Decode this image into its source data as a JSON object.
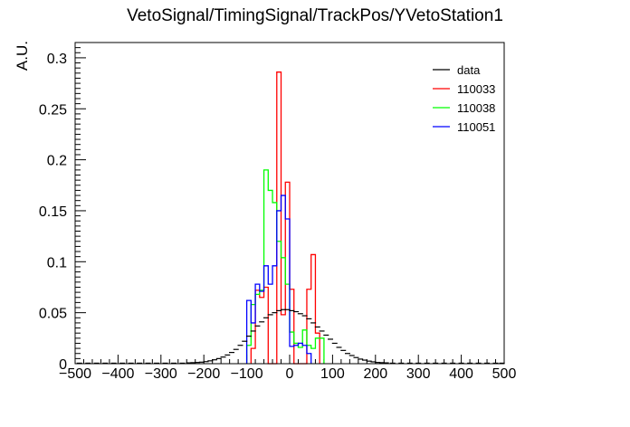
{
  "chart_data": {
    "type": "histogram",
    "title": "VetoSignal/TimingSignal/TrackPos/YVetoStation1",
    "xlabel": "",
    "ylabel": "A.U.",
    "xlim": [
      -500,
      500
    ],
    "ylim": [
      0,
      0.315
    ],
    "bin_width": 10,
    "xticks": [
      -500,
      -400,
      -300,
      -200,
      -100,
      0,
      100,
      200,
      300,
      400,
      500
    ],
    "xtick_labels": [
      "−500",
      "−400",
      "−300",
      "−200",
      "−100",
      "0",
      "100",
      "200",
      "300",
      "400",
      "500"
    ],
    "yticks": [
      0,
      0.05,
      0.1,
      0.15,
      0.2,
      0.25,
      0.3
    ],
    "ytick_labels": [
      "0",
      "0.05",
      "0.1",
      "0.15",
      "0.2",
      "0.25",
      "0.3"
    ],
    "legend_position": "top-right",
    "series": [
      {
        "name": "data",
        "color": "#000000",
        "style": "errorbars",
        "x": [
          -490,
          -470,
          -450,
          -430,
          -410,
          -390,
          -370,
          -350,
          -330,
          -310,
          -290,
          -270,
          -250,
          -235,
          -225,
          -215,
          -205,
          -195,
          -185,
          -175,
          -165,
          -155,
          -145,
          -135,
          -125,
          -115,
          -105,
          -95,
          -85,
          -75,
          -65,
          -55,
          -45,
          -35,
          -25,
          -15,
          -5,
          5,
          15,
          25,
          35,
          45,
          55,
          65,
          75,
          85,
          95,
          105,
          115,
          125,
          135,
          145,
          155,
          165,
          175,
          185,
          195,
          205,
          215,
          225,
          240,
          260,
          280,
          300,
          320,
          340,
          360,
          380,
          400,
          420,
          440,
          460,
          480,
          495
        ],
        "y": [
          0.0005,
          0.0005,
          0.0005,
          0.0005,
          0.0005,
          0.0005,
          0.0005,
          0.0005,
          0.0005,
          0.0005,
          0.0005,
          0.0005,
          0.0005,
          0.0008,
          0.001,
          0.0012,
          0.0015,
          0.002,
          0.0028,
          0.0038,
          0.005,
          0.0065,
          0.0085,
          0.011,
          0.014,
          0.018,
          0.022,
          0.027,
          0.032,
          0.037,
          0.041,
          0.045,
          0.048,
          0.05,
          0.052,
          0.053,
          0.053,
          0.052,
          0.051,
          0.049,
          0.047,
          0.044,
          0.04,
          0.036,
          0.032,
          0.028,
          0.024,
          0.02,
          0.016,
          0.013,
          0.01,
          0.008,
          0.006,
          0.0045,
          0.0035,
          0.0025,
          0.0018,
          0.0012,
          0.001,
          0.0008,
          0.0005,
          0.0005,
          0.0005,
          0.0005,
          0.0005,
          0.0005,
          0.0005,
          0.0005,
          0.0005,
          0.0005,
          0.0005,
          0.0005,
          0.0005,
          0.0005
        ]
      },
      {
        "name": "110033",
        "color": "#ff0000",
        "style": "step",
        "bin_edges": [
          -90,
          -80,
          -70,
          -60,
          -50,
          -40,
          -30,
          -20,
          -10,
          0,
          10,
          20,
          30,
          40,
          50,
          60,
          70
        ],
        "values": [
          0.015,
          0.072,
          0.065,
          0.075,
          0,
          0,
          0.286,
          0.048,
          0.178,
          0.073,
          0,
          0,
          0,
          0.073,
          0.107,
          0.03
        ]
      },
      {
        "name": "110038",
        "color": "#00ff00",
        "style": "step",
        "bin_edges": [
          -100,
          -90,
          -80,
          -70,
          -60,
          -50,
          -40,
          -30,
          -20,
          -10,
          0,
          10,
          20,
          30,
          40,
          50,
          60,
          70,
          80
        ],
        "values": [
          0.018,
          0.058,
          0.068,
          0.072,
          0.19,
          0.17,
          0.158,
          0.12,
          0.104,
          0.078,
          0.031,
          0.02,
          0.016,
          0.033,
          0.018,
          0.015,
          0.025,
          0.025
        ]
      },
      {
        "name": "110051",
        "color": "#0000ff",
        "style": "step",
        "bin_edges": [
          -100,
          -90,
          -80,
          -70,
          -60,
          -50,
          -40,
          -30,
          -20,
          -10,
          0,
          10,
          20,
          30,
          40,
          50
        ],
        "values": [
          0.062,
          0.04,
          0.078,
          0.071,
          0.096,
          0.078,
          0.096,
          0.15,
          0.165,
          0.142,
          0.017,
          0.018,
          0.02,
          0.018,
          0.01
        ]
      }
    ]
  }
}
